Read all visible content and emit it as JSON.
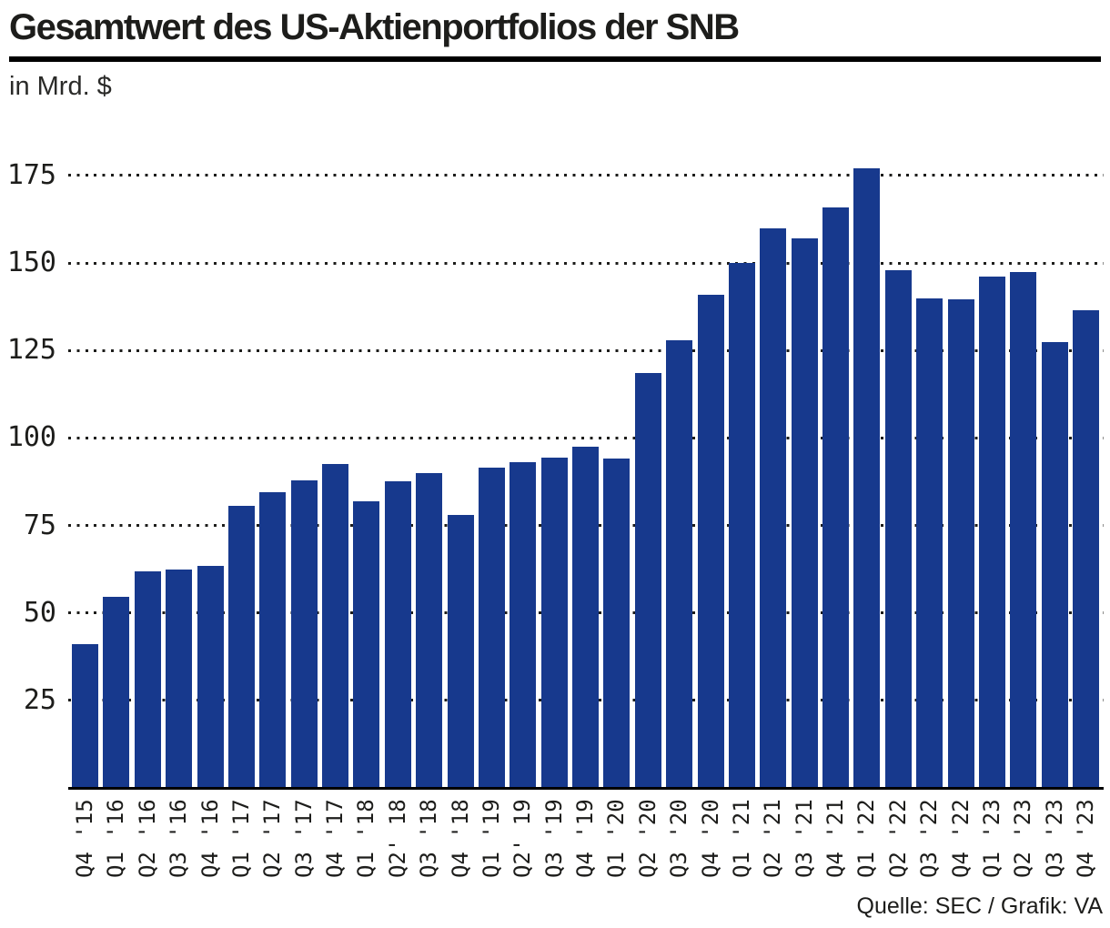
{
  "title": "Gesamtwert des US-Aktienportfolios der SNB",
  "subtitle": "in Mrd. $",
  "source": "Quelle: SEC / Grafik: VA",
  "colors": {
    "bar": "#17398d",
    "grid_dot": "#1d1d1b",
    "axis_line": "#000000",
    "title_rule": "#000000",
    "text": "#1d1d1b"
  },
  "chart_data": {
    "type": "bar",
    "title": "Gesamtwert des US-Aktienportfolios der SNB",
    "unit_label": "in Mrd. $",
    "xlabel": "",
    "ylabel": "in Mrd. $",
    "categories": [
      "Q4 '15",
      "Q1 '16",
      "Q2 '16",
      "Q3 '16",
      "Q4 '16",
      "Q1 '17",
      "Q2 '17",
      "Q3 '17",
      "Q4 '17",
      "Q1 '18",
      "Q2' 18",
      "Q3 '18",
      "Q4 '18",
      "Q1 '19",
      "Q2' 19",
      "Q3 '19",
      "Q4 '19",
      "Q1 '20",
      "Q2 '20",
      "Q3 '20",
      "Q4 '20",
      "Q1 '21",
      "Q2 '21",
      "Q3 '21",
      "Q4 '21",
      "Q1 '22",
      "Q2 '22",
      "Q3 '22",
      "Q4 '22",
      "Q1 '23",
      "Q2 '23",
      "Q3 '23",
      "Q4 '23"
    ],
    "values": [
      41,
      54.5,
      62,
      62.5,
      63.5,
      80.5,
      84.5,
      88,
      92.5,
      82,
      87.5,
      90,
      78,
      91.5,
      93,
      94.5,
      97.5,
      94,
      118.5,
      128,
      141,
      150,
      160,
      157,
      166,
      177,
      148,
      140,
      139.5,
      146,
      147.5,
      127.5,
      136.5
    ],
    "ylim": [
      0,
      182
    ],
    "yticks": [
      25,
      50,
      75,
      100,
      125,
      150,
      175
    ],
    "grid": "dotted-horizontal",
    "legend": "none",
    "source": "Quelle: SEC / Grafik: VA"
  }
}
